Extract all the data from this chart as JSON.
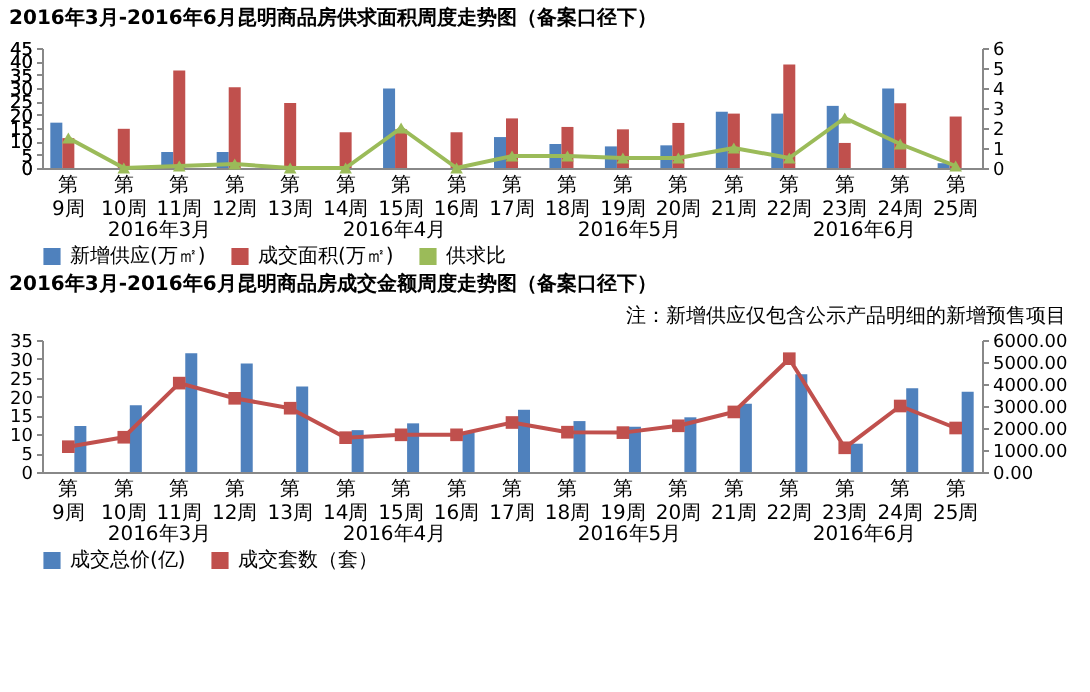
{
  "chart_data": [
    {
      "type": "bar",
      "title": "2016年3月-2016年6月昆明商品房供求面积周度走势图（备案口径下）",
      "categories": [
        "第9周",
        "第10周",
        "第11周",
        "第12周",
        "第13周",
        "第14周",
        "第15周",
        "第16周",
        "第17周",
        "第18周",
        "第19周",
        "第20周",
        "第21周",
        "第22周",
        "第23周",
        "第24周",
        "第25周"
      ],
      "series": [
        {
          "name": "新增供应(万㎡)",
          "color": "#4f81bd",
          "values": [
            17,
            null,
            6,
            6,
            null,
            null,
            29.8,
            null,
            11.6,
            9,
            8.1,
            8.5,
            21.1,
            20.4,
            23.3,
            29.8,
            1.8
          ]
        },
        {
          "name": "成交面积(万㎡)",
          "color": "#c0504d",
          "values": [
            11.2,
            14.7,
            36.6,
            30.3,
            24.4,
            13.4,
            14.5,
            13.4,
            18.6,
            15.4,
            14.5,
            16.9,
            20.4,
            38.8,
            9.4,
            24.3,
            19.3
          ]
        },
        {
          "name": "供求比",
          "color": "#9bbb59",
          "type": "line",
          "axis": "y2",
          "marker": "triangle",
          "line_style": "solid",
          "values": [
            1.5,
            0,
            0.1,
            0.2,
            0,
            0,
            2,
            0,
            0.6,
            0.6,
            0.5,
            0.5,
            1,
            0.5,
            2.5,
            1.2,
            0.1
          ]
        }
      ],
      "ylim": [
        0,
        45
      ],
      "yticks": [
        0,
        5,
        10,
        15,
        20,
        25,
        30,
        35,
        40,
        45
      ],
      "y2lim": [
        0,
        6
      ],
      "y2ticks": [
        0,
        1,
        2,
        3,
        4,
        5,
        6
      ],
      "legend": "bottom",
      "grid": false,
      "annotations": [
        "2016年3月",
        "2016年4月",
        "2016年5月",
        "2016年6月"
      ]
    },
    {
      "type": "bar",
      "title": "2016年3月-2016年6月昆明商品房成交金额周度走势图（备案口径下）",
      "categories": [
        "第9周",
        "第10周",
        "第11周",
        "第12周",
        "第13周",
        "第14周",
        "第15周",
        "第16周",
        "第17周",
        "第18周",
        "第19周",
        "第20周",
        "第21周",
        "第22周",
        "第23周",
        "第24周",
        "第25周"
      ],
      "series": [
        {
          "name": "成交总价(亿)",
          "color": "#4f81bd",
          "values": [
            12.2,
            17.7,
            31.5,
            28.8,
            22.7,
            11.1,
            12.9,
            10.4,
            16.5,
            13.5,
            12,
            14.5,
            18.1,
            25.9,
            7.5,
            22.2,
            21.3
          ]
        },
        {
          "name": "成交套数（套）",
          "color": "#c0504d",
          "type": "line",
          "axis": "y2",
          "marker": "square",
          "line_style": "solid",
          "values": [
            1150,
            1580,
            4040,
            3350,
            2900,
            1560,
            1690,
            1690,
            2250,
            1810,
            1790,
            2100,
            2730,
            5150,
            1100,
            3000,
            2000
          ]
        }
      ],
      "ylim": [
        0,
        35
      ],
      "yticks": [
        0,
        5,
        10,
        15,
        20,
        25,
        30,
        35
      ],
      "y2lim": [
        0,
        6000
      ],
      "y2ticks": [
        {
          "value": 0,
          "label": "0.00"
        },
        {
          "value": 1000,
          "label": "1000.00"
        },
        {
          "value": 2000,
          "label": "2000.00"
        },
        {
          "value": 3000,
          "label": "3000.00"
        },
        {
          "value": 4000,
          "label": "4000.00"
        },
        {
          "value": 5000,
          "label": "5000.00"
        },
        {
          "value": 6000,
          "label": "6000.00"
        }
      ],
      "legend": "bottom",
      "grid": false,
      "annotations": [
        "注：新增供应仅包含公示产品明细的新增预售项目",
        "2016年3月",
        "2016年4月",
        "2016年5月",
        "2016年6月"
      ]
    }
  ]
}
